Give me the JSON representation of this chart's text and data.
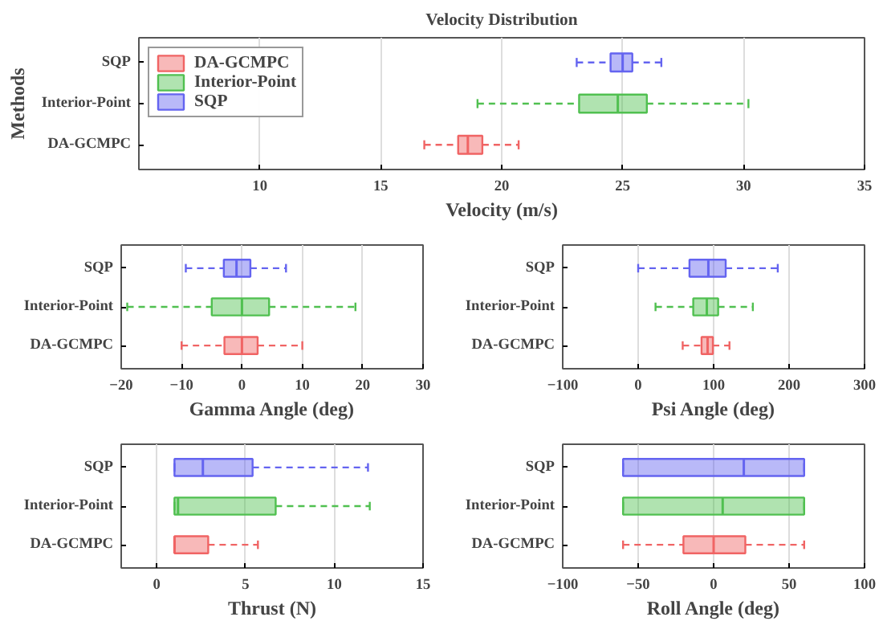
{
  "chart_data": [
    {
      "type": "box",
      "orientation": "horizontal",
      "title": "Velocity Distribution",
      "xlabel": "Velocity (m/s)",
      "ylabel": "Methods",
      "categories": [
        "SQP",
        "Interior-Point",
        "DA-GCMPC"
      ],
      "xlim": [
        5,
        35
      ],
      "xticks": [
        10,
        15,
        20,
        25,
        30,
        35
      ],
      "grid": "x",
      "legend": "top left",
      "series": [
        {
          "name": "DA-GCMPC",
          "color": "#f06464",
          "boxes": [
            null,
            null,
            {
              "low": 16.8,
              "q1": 18.2,
              "median": 18.6,
              "q3": 19.2,
              "high": 20.7
            }
          ]
        },
        {
          "name": "Interior-Point",
          "color": "#50c050",
          "boxes": [
            null,
            {
              "low": 19.0,
              "q1": 23.2,
              "median": 24.8,
              "q3": 26.0,
              "high": 30.2
            },
            null
          ]
        },
        {
          "name": "SQP",
          "color": "#6464f0",
          "boxes": [
            {
              "low": 23.1,
              "q1": 24.5,
              "median": 25.0,
              "q3": 25.4,
              "high": 26.6
            },
            null,
            null
          ]
        }
      ]
    },
    {
      "type": "box",
      "orientation": "horizontal",
      "xlabel": "Gamma Angle (deg)",
      "categories": [
        "SQP",
        "Interior-Point",
        "DA-GCMPC"
      ],
      "xlim": [
        -20,
        30
      ],
      "xticks": [
        -20,
        -10,
        0,
        10,
        20,
        30
      ],
      "grid": "x",
      "series": [
        {
          "color": "#f06464",
          "boxes": [
            null,
            null,
            {
              "low": -10,
              "q1": -2.9,
              "median": 0,
              "q3": 2.6,
              "high": 10
            }
          ]
        },
        {
          "color": "#50c050",
          "boxes": [
            null,
            {
              "low": -19.0,
              "q1": -5.0,
              "median": 0,
              "q3": 4.5,
              "high": 18.8
            },
            null
          ]
        },
        {
          "color": "#6464f0",
          "boxes": [
            {
              "low": -9.3,
              "q1": -3.0,
              "median": -0.9,
              "q3": 1.4,
              "high": 7.3
            },
            null,
            null
          ]
        }
      ]
    },
    {
      "type": "box",
      "orientation": "horizontal",
      "xlabel": "Psi Angle (deg)",
      "categories": [
        "SQP",
        "Interior-Point",
        "DA-GCMPC"
      ],
      "xlim": [
        -100,
        300
      ],
      "xticks": [
        -100,
        0,
        100,
        200,
        300
      ],
      "grid": "x",
      "series": [
        {
          "color": "#f06464",
          "boxes": [
            null,
            null,
            {
              "low": 59,
              "q1": 84,
              "median": 92,
              "q3": 99,
              "high": 121
            }
          ]
        },
        {
          "color": "#50c050",
          "boxes": [
            null,
            {
              "low": 23,
              "q1": 73,
              "median": 91,
              "q3": 106,
              "high": 152
            },
            null
          ]
        },
        {
          "color": "#6464f0",
          "boxes": [
            {
              "low": 0,
              "q1": 68,
              "median": 93,
              "q3": 116,
              "high": 185
            },
            null,
            null
          ]
        }
      ]
    },
    {
      "type": "box",
      "orientation": "horizontal",
      "xlabel": "Thrust (N)",
      "categories": [
        "SQP",
        "Interior-Point",
        "DA-GCMPC"
      ],
      "xlim": [
        -2,
        15
      ],
      "xticks": [
        0,
        5,
        10,
        15
      ],
      "grid": "x",
      "series": [
        {
          "color": "#f06464",
          "boxes": [
            null,
            null,
            {
              "low": 1.0,
              "q1": 1.0,
              "median": 1.0,
              "q3": 2.9,
              "high": 5.7
            }
          ]
        },
        {
          "color": "#50c050",
          "boxes": [
            null,
            {
              "low": 1.0,
              "q1": 1.0,
              "median": 1.2,
              "q3": 6.7,
              "high": 12.0
            },
            null
          ]
        },
        {
          "color": "#6464f0",
          "boxes": [
            {
              "low": 1.0,
              "q1": 1.0,
              "median": 2.6,
              "q3": 5.4,
              "high": 11.9
            },
            null,
            null
          ]
        }
      ]
    },
    {
      "type": "box",
      "orientation": "horizontal",
      "xlabel": "Roll Angle (deg)",
      "categories": [
        "SQP",
        "Interior-Point",
        "DA-GCMPC"
      ],
      "xlim": [
        -100,
        100
      ],
      "xticks": [
        -100,
        -50,
        0,
        50,
        100
      ],
      "grid": "x",
      "series": [
        {
          "color": "#f06464",
          "boxes": [
            null,
            null,
            {
              "low": -60,
              "q1": -20,
              "median": 0,
              "q3": 21,
              "high": 60
            }
          ]
        },
        {
          "color": "#50c050",
          "boxes": [
            null,
            {
              "low": -60,
              "q1": -60,
              "median": 6,
              "q3": 60,
              "high": 60
            },
            null
          ]
        },
        {
          "color": "#6464f0",
          "boxes": [
            {
              "low": -60,
              "q1": -60,
              "median": 20,
              "q3": 60,
              "high": 60
            },
            null,
            null
          ]
        }
      ]
    }
  ]
}
